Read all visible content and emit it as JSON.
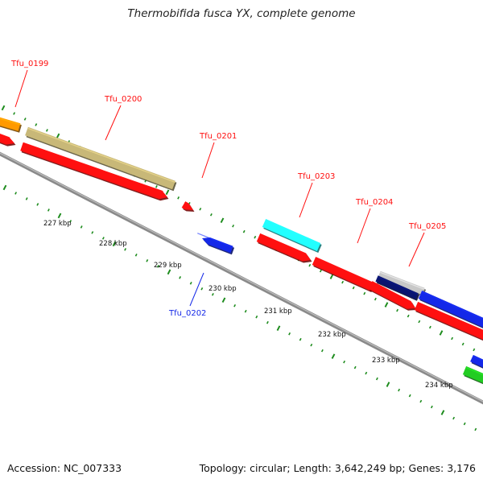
{
  "title": "Thermobifida fusca YX, complete genome",
  "footer": {
    "accession": "Accession: NC_007333",
    "summary": "Topology: circular; Length: 3,642,249 bp; Genes: 3,176"
  },
  "colors": {
    "red": "#ff1010",
    "blue": "#1428e8",
    "orange": "#ff9900",
    "khaki": "#c8b878",
    "cyan": "#22ffff",
    "gray": "#c8c8c8",
    "navy": "#0a1470",
    "green": "#22cc22",
    "tick": "#1e8c1e",
    "backbone": "#8a8a8a"
  },
  "map": {
    "kbp_labels": [
      "227 kbp",
      "228 kbp",
      "229 kbp",
      "230 kbp",
      "231 kbp",
      "232 kbp",
      "233 kbp",
      "234 kbp"
    ],
    "gene_labels": [
      {
        "text": "Tfu_0199",
        "color": "red"
      },
      {
        "text": "Tfu_0200",
        "color": "red"
      },
      {
        "text": "Tfu_0201",
        "color": "red"
      },
      {
        "text": "Tfu_0202",
        "color": "blue"
      },
      {
        "text": "Tfu_0203",
        "color": "red"
      },
      {
        "text": "Tfu_0204",
        "color": "red"
      },
      {
        "text": "Tfu_0205",
        "color": "red"
      }
    ],
    "feature_colors": [
      "orange",
      "red",
      "khaki",
      "red",
      "red",
      "blue",
      "cyan",
      "red",
      "red",
      "gray",
      "navy",
      "red",
      "blue",
      "red",
      "blue",
      "green"
    ]
  }
}
